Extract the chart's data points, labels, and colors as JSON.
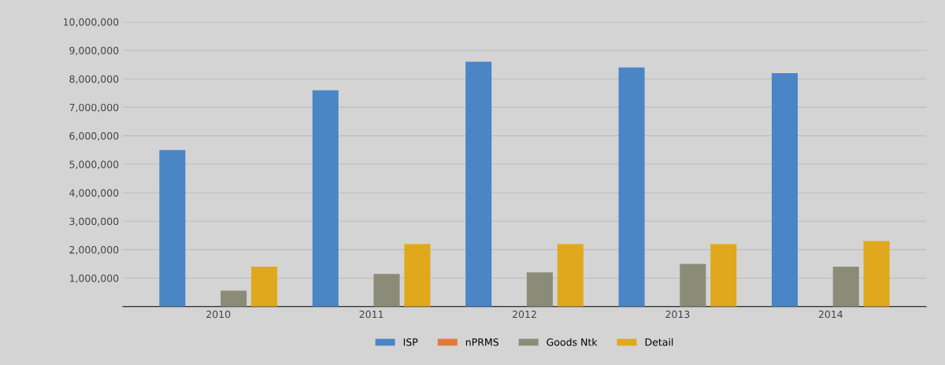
{
  "chart_data": {
    "type": "bar",
    "categories": [
      "2010",
      "2011",
      "2012",
      "2013",
      "2014"
    ],
    "series": [
      {
        "name": "ISP",
        "color": "#4a86c5",
        "values": [
          5500000,
          7600000,
          8600000,
          8400000,
          8200000
        ]
      },
      {
        "name": "nPRMS",
        "color": "#e07b39",
        "values": [
          0,
          0,
          0,
          0,
          0
        ]
      },
      {
        "name": "Goods Ntk",
        "color": "#8a8c78",
        "values": [
          560000,
          1150000,
          1200000,
          1500000,
          1400000
        ]
      },
      {
        "name": "Detail",
        "color": "#e0a81c",
        "values": [
          1400000,
          2200000,
          2200000,
          2200000,
          2300000
        ]
      }
    ],
    "ylim": [
      0,
      10000000
    ],
    "yticks": [
      {
        "value": 0,
        "label": null
      },
      {
        "value": 1000000,
        "label": "1,000,000"
      },
      {
        "value": 2000000,
        "label": "2,000,000"
      },
      {
        "value": 3000000,
        "label": "3,000,000"
      },
      {
        "value": 4000000,
        "label": "4,000,000"
      },
      {
        "value": 5000000,
        "label": "5,000,000"
      },
      {
        "value": 6000000,
        "label": "6,000,000"
      },
      {
        "value": 7000000,
        "label": "7,000,000"
      },
      {
        "value": 8000000,
        "label": "8,000,000"
      },
      {
        "value": 9000000,
        "label": "9,000,000"
      },
      {
        "value": 10000000,
        "label": "10,000,000"
      }
    ],
    "grid": "y",
    "legend": "bottom"
  }
}
